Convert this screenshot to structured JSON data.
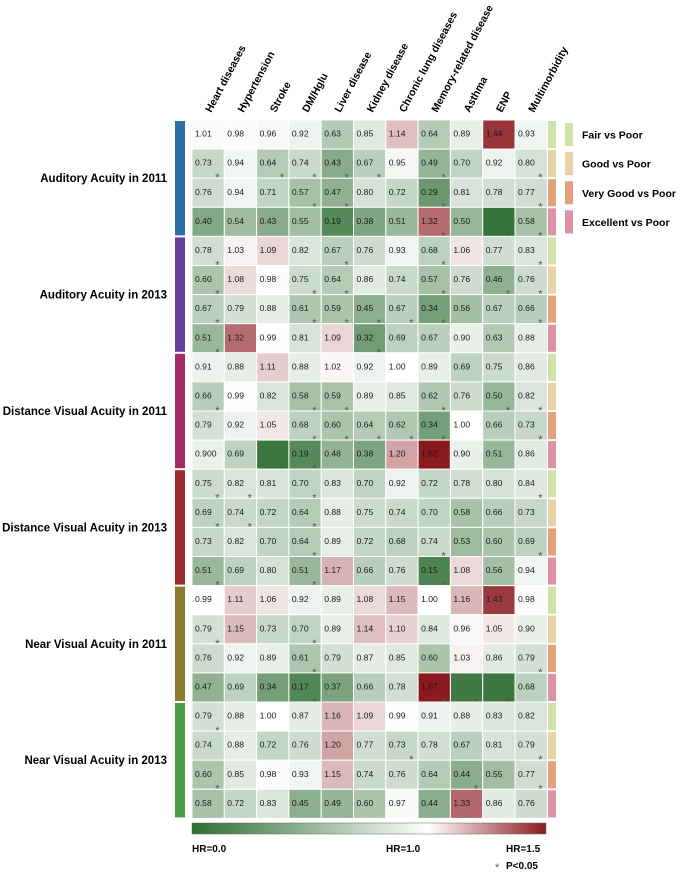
{
  "chart_data": {
    "type": "heatmap",
    "title": "",
    "columns": [
      "Heart diseases",
      "Hypertension",
      "Stroke",
      "DM/Hglu",
      "Liver disease",
      "Kidney disease",
      "Chronic lung diseases",
      "Memory-related disease",
      "Asthma",
      "ENP",
      "Multimorbidity"
    ],
    "comparisons": [
      "Fair vs Poor",
      "Good vs Poor",
      "Very Good vs Poor",
      "Excellent vs Poor"
    ],
    "comparison_colors": [
      "#cfe3a8",
      "#ead2a8",
      "#e2a27c",
      "#dd93a6"
    ],
    "groups": [
      {
        "label": "Auditory Acuity in 2011",
        "color": "#2f6fa3"
      },
      {
        "label": "Auditory Acuity in 2013",
        "color": "#6a3d9a"
      },
      {
        "label": "Distance Visual Acuity in 2011",
        "color": "#a42a6a"
      },
      {
        "label": "Distance Visual Acuity in 2013",
        "color": "#9e2b2e"
      },
      {
        "label": "Near Visual Acuity in 2011",
        "color": "#8d7a2e"
      },
      {
        "label": "Near Visual Acuity in 2013",
        "color": "#4a9a46"
      }
    ],
    "values": [
      [
        1.01,
        0.98,
        0.96,
        0.92,
        0.63,
        0.85,
        1.14,
        0.64,
        0.89,
        1.44,
        0.93
      ],
      [
        0.73,
        0.94,
        0.64,
        0.74,
        0.43,
        0.67,
        0.95,
        0.49,
        0.7,
        0.92,
        0.8
      ],
      [
        0.76,
        0.94,
        0.71,
        0.57,
        0.47,
        0.8,
        0.72,
        0.29,
        0.81,
        0.78,
        0.77
      ],
      [
        0.4,
        0.54,
        0.43,
        0.55,
        0.19,
        0.38,
        0.51,
        1.32,
        0.5,
        0.04,
        0.58
      ],
      [
        0.78,
        1.03,
        1.09,
        0.82,
        0.67,
        0.76,
        0.93,
        0.68,
        1.06,
        0.77,
        0.83
      ],
      [
        0.6,
        1.08,
        0.98,
        0.75,
        0.64,
        0.86,
        0.74,
        0.57,
        0.76,
        0.46,
        0.76
      ],
      [
        0.67,
        0.79,
        0.88,
        0.61,
        0.59,
        0.45,
        0.67,
        0.34,
        0.56,
        0.67,
        0.66
      ],
      [
        0.51,
        1.32,
        0.99,
        0.81,
        1.09,
        0.32,
        0.69,
        0.67,
        0.9,
        0.63,
        0.88
      ],
      [
        0.91,
        0.88,
        1.11,
        0.88,
        1.02,
        0.92,
        1.0,
        0.89,
        0.69,
        0.75,
        0.86
      ],
      [
        0.66,
        0.99,
        0.82,
        0.58,
        0.59,
        0.89,
        0.85,
        0.62,
        0.76,
        0.5,
        0.82
      ],
      [
        0.79,
        0.92,
        1.05,
        0.68,
        0.6,
        0.64,
        0.62,
        0.34,
        1.0,
        0.66,
        0.73
      ],
      [
        0.9,
        0.69,
        0.06,
        0.19,
        0.48,
        0.38,
        1.2,
        1.62,
        0.9,
        0.51,
        0.86
      ],
      [
        0.75,
        0.82,
        0.81,
        0.7,
        0.83,
        0.7,
        0.92,
        0.72,
        0.78,
        0.8,
        0.84
      ],
      [
        0.69,
        0.74,
        0.72,
        0.64,
        0.88,
        0.75,
        0.74,
        0.7,
        0.58,
        0.66,
        0.73
      ],
      [
        0.73,
        0.82,
        0.7,
        0.64,
        0.89,
        0.72,
        0.68,
        0.74,
        0.53,
        0.6,
        0.69
      ],
      [
        0.51,
        0.69,
        0.8,
        0.51,
        1.17,
        0.66,
        0.76,
        0.15,
        1.08,
        0.56,
        0.94
      ],
      [
        0.99,
        1.11,
        1.06,
        0.92,
        0.89,
        1.08,
        1.15,
        1.0,
        1.16,
        1.43,
        0.98
      ],
      [
        0.79,
        1.15,
        0.73,
        0.7,
        0.89,
        1.14,
        1.1,
        0.84,
        0.96,
        1.05,
        0.9
      ],
      [
        0.76,
        0.92,
        0.89,
        0.61,
        0.79,
        0.87,
        0.85,
        0.6,
        1.03,
        0.86,
        0.79
      ],
      [
        0.47,
        0.69,
        0.34,
        0.17,
        0.37,
        0.66,
        0.78,
        1.67,
        0.08,
        0.06,
        0.68
      ],
      [
        0.79,
        0.88,
        1.0,
        0.87,
        1.16,
        1.09,
        0.99,
        0.91,
        0.88,
        0.83,
        0.82
      ],
      [
        0.74,
        0.88,
        0.72,
        0.76,
        1.2,
        0.77,
        0.73,
        0.78,
        0.67,
        0.81,
        0.79
      ],
      [
        0.6,
        0.85,
        0.98,
        0.93,
        1.15,
        0.74,
        0.76,
        0.64,
        0.44,
        0.55,
        0.77
      ],
      [
        0.58,
        0.72,
        0.83,
        0.45,
        0.49,
        0.6,
        0.97,
        0.44,
        1.33,
        0.86,
        0.76
      ]
    ],
    "labels": [
      [
        "1.01",
        "0.98",
        "0.96",
        "0.92",
        "0.63",
        "0.85",
        "1.14",
        "0.64",
        "0.89",
        "1.44",
        "0.93"
      ],
      [
        "0.73",
        "0.94",
        "0.64",
        "0.74",
        "0.43",
        "0.67",
        "0.95",
        "0.49",
        "0.70",
        "0.92",
        "0.80"
      ],
      [
        "0.76",
        "0.94",
        "0.71",
        "0.57",
        "0.47",
        "0.80",
        "0.72",
        "0.29",
        "0.81",
        "0.78",
        "0.77"
      ],
      [
        "0.40",
        "0.54",
        "0.43",
        "0.55",
        "0.19",
        "0.38",
        "0.51",
        "1.32",
        "0.50",
        "",
        "0.58"
      ],
      [
        "0.78",
        "1.03",
        "1.09",
        "0.82",
        "0.67",
        "0.76",
        "0.93",
        "0.68",
        "1.06",
        "0.77",
        "0.83"
      ],
      [
        "0.60",
        "1.08",
        "0.98",
        "0.75",
        "0.64",
        "0.86",
        "0.74",
        "0.57",
        "0.76",
        "0.46",
        "0.76"
      ],
      [
        "0.67",
        "0.79",
        "0.88",
        "0.61",
        "0.59",
        "0.45",
        "0.67",
        "0.34",
        "0.56",
        "0.67",
        "0.66"
      ],
      [
        "0.51",
        "1.32",
        "0.99",
        "0.81",
        "1.09",
        "0.32",
        "0.69",
        "0.67",
        "0.90",
        "0.63",
        "0.88"
      ],
      [
        "0.91",
        "0.88",
        "1.11",
        "0.88",
        "1.02",
        "0.92",
        "1.00",
        "0.89",
        "0.69",
        "0.75",
        "0.86"
      ],
      [
        "0.66",
        "0.99",
        "0.82",
        "0.58",
        "0.59",
        "0.89",
        "0.85",
        "0.62",
        "0.76",
        "0.50",
        "0.82"
      ],
      [
        "0.79",
        "0.92",
        "1.05",
        "0.68",
        "0.60",
        "0.64",
        "0.62",
        "0.34",
        "1.00",
        "0.66",
        "0.73"
      ],
      [
        "0.900",
        "0.69",
        "",
        "0.19",
        "0.48",
        "0.38",
        "1.20",
        "1.62",
        "0.90",
        "0.51",
        "0.86"
      ],
      [
        "0.75",
        "0.82",
        "0.81",
        "0.70",
        "0.83",
        "0.70",
        "0.92",
        "0.72",
        "0.78",
        "0.80",
        "0.84"
      ],
      [
        "0.69",
        "0.74",
        "0.72",
        "0.64",
        "0.88",
        "0.75",
        "0.74",
        "0.70",
        "0.58",
        "0.66",
        "0.73"
      ],
      [
        "0.73",
        "0.82",
        "0.70",
        "0.64",
        "0.89",
        "0.72",
        "0.68",
        "0.74",
        "0.53",
        "0.60",
        "0.69"
      ],
      [
        "0.51",
        "0.69",
        "0.80",
        "0.51",
        "1.17",
        "0.66",
        "0.76",
        "0.15",
        "1.08",
        "0.56",
        "0.94"
      ],
      [
        "0.99",
        "1.11",
        "1.06",
        "0.92",
        "0.89",
        "1.08",
        "1.15",
        "1.00",
        "1.16",
        "1.43",
        "0.98"
      ],
      [
        "0.79",
        "1.15",
        "0.73",
        "0.70",
        "0.89",
        "1.14",
        "1.10",
        "0.84",
        "0.96",
        "1.05",
        "0.90"
      ],
      [
        "0.76",
        "0.92",
        "0.89",
        "0.61",
        "0.79",
        "0.87",
        "0.85",
        "0.60",
        "1.03",
        "0.86",
        "0.79"
      ],
      [
        "0.47",
        "0.69",
        "0.34",
        "0.17",
        "0.37",
        "0.66",
        "0.78",
        "1.67",
        "",
        "",
        "0.68"
      ],
      [
        "0.79",
        "0.88",
        "1.00",
        "0.87",
        "1.16",
        "1.09",
        "0.99",
        "0.91",
        "0.88",
        "0.83",
        "0.82"
      ],
      [
        "0.74",
        "0.88",
        "0.72",
        "0.76",
        "1.20",
        "0.77",
        "0.73",
        "0.78",
        "0.67",
        "0.81",
        "0.79"
      ],
      [
        "0.60",
        "0.85",
        "0.98",
        "0.93",
        "1.15",
        "0.74",
        "0.76",
        "0.64",
        "0.44",
        "0.55",
        "0.77"
      ],
      [
        "0.58",
        "0.72",
        "0.83",
        "0.45",
        "0.49",
        "0.60",
        "0.97",
        "0.44",
        "1.33",
        "0.86",
        "0.76"
      ]
    ],
    "significant": [
      [],
      [
        0,
        2,
        3,
        4,
        5,
        7,
        10
      ],
      [
        3,
        4,
        7,
        10
      ],
      [
        7,
        9,
        10
      ],
      [
        0,
        4,
        7,
        10
      ],
      [
        0,
        3,
        4,
        7,
        9,
        10
      ],
      [
        0,
        3,
        4,
        5,
        6,
        7,
        10
      ],
      [
        0,
        5
      ],
      [],
      [
        0,
        3,
        4,
        7,
        9,
        10
      ],
      [
        3,
        4,
        5,
        6,
        7,
        10
      ],
      [
        2,
        3
      ],
      [
        0,
        1,
        3,
        10
      ],
      [
        0,
        1,
        3
      ],
      [
        3,
        7,
        10
      ],
      [
        0,
        3,
        7
      ],
      [],
      [
        0,
        3
      ],
      [
        3,
        10
      ],
      [
        3,
        7,
        8,
        9
      ],
      [
        0
      ],
      [
        6,
        10
      ],
      [
        0,
        8,
        10
      ],
      []
    ],
    "color_scale": {
      "min": 0.0,
      "mid": 1.0,
      "max": 1.5,
      "colors": [
        "#2e6e33",
        "#ffffff",
        "#8b1a1e"
      ]
    },
    "colorbar_labels": [
      "HR=0.0",
      "HR=1.0",
      "HR=1.5"
    ],
    "significance_marker": "*",
    "significance_label": "P<0.05"
  }
}
